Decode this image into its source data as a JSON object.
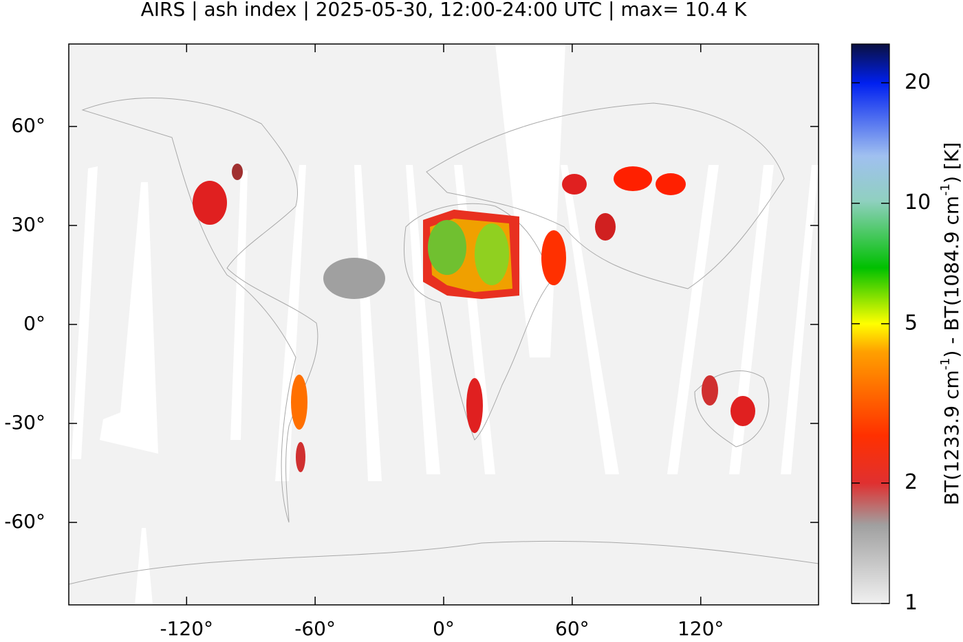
{
  "chart_data": {
    "type": "map",
    "title": "AIRS | ash index | 2025-05-30, 12:00-24:00 UTC | max= 10.4 K",
    "xlim": [
      -175,
      175
    ],
    "ylim": [
      -85,
      85
    ],
    "xticks": [
      {
        "value": -120,
        "label": "-120°"
      },
      {
        "value": -60,
        "label": "-60°"
      },
      {
        "value": 0,
        "label": "0°"
      },
      {
        "value": 60,
        "label": "60°"
      },
      {
        "value": 120,
        "label": "120°"
      }
    ],
    "yticks": [
      {
        "value": 60,
        "label": "60°"
      },
      {
        "value": 30,
        "label": "30°"
      },
      {
        "value": 0,
        "label": "0°"
      },
      {
        "value": -30,
        "label": "-30°"
      },
      {
        "value": -60,
        "label": "-60°"
      }
    ],
    "colorbar": {
      "label": [
        "BT(1233.9 cm",
        "-1",
        ") - BT(1084.9 cm",
        "-1",
        ") [K]"
      ],
      "clim": [
        1,
        25
      ],
      "log": true,
      "ticks": [
        1,
        2,
        5,
        10,
        20
      ]
    }
  }
}
